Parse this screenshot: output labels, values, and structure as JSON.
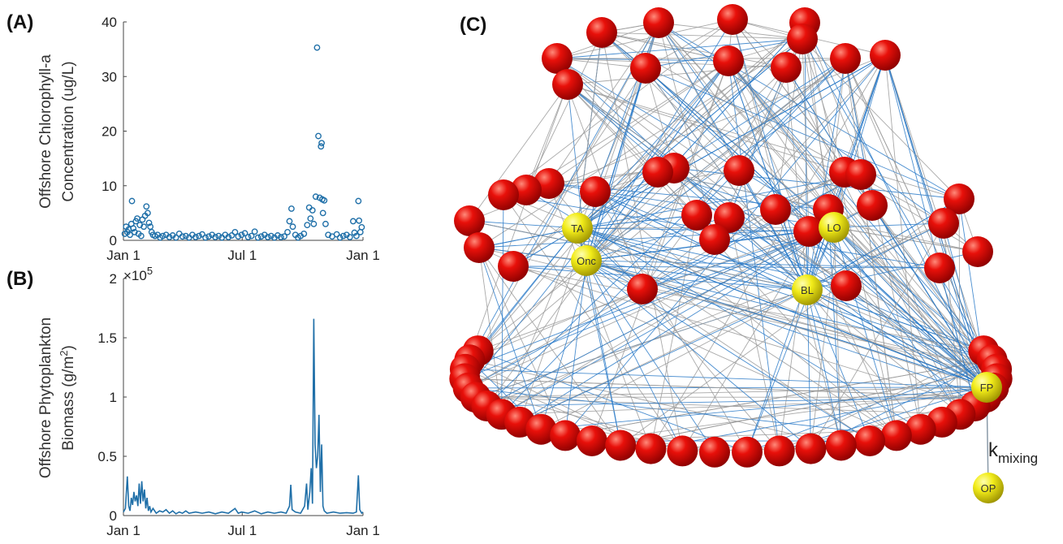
{
  "chart_data": [
    {
      "type": "scatter",
      "panel_label": "(A)",
      "ylabel": [
        "Offshore Chlorophyll-a",
        "Concentration (ug/L)"
      ],
      "color": "#1f6fa8",
      "xlim": [
        0,
        365
      ],
      "xticks": [
        {
          "value": 0,
          "label": "Jan 1"
        },
        {
          "value": 181,
          "label": "Jul 1"
        },
        {
          "value": 365,
          "label": "Jan 1"
        }
      ],
      "ylim": [
        0,
        40
      ],
      "yticks": [
        0,
        10,
        20,
        30,
        40
      ],
      "x": [
        2,
        4,
        6,
        8,
        10,
        12,
        13,
        15,
        17,
        19,
        21,
        23,
        25,
        27,
        29,
        31,
        33,
        35,
        37,
        39,
        41,
        43,
        45,
        48,
        52,
        56,
        60,
        65,
        70,
        75,
        80,
        85,
        90,
        95,
        100,
        105,
        110,
        115,
        120,
        125,
        130,
        135,
        140,
        145,
        150,
        155,
        160,
        165,
        170,
        175,
        180,
        185,
        190,
        195,
        200,
        205,
        210,
        215,
        220,
        225,
        230,
        235,
        240,
        245,
        250,
        253,
        256,
        258,
        262,
        266,
        270,
        275,
        280,
        283,
        285,
        288,
        290,
        293,
        295,
        297,
        299,
        301,
        302,
        303,
        304,
        306,
        308,
        312,
        318,
        325,
        330,
        335,
        340,
        345,
        350,
        352,
        355,
        358,
        359,
        361,
        363
      ],
      "values": [
        1.2,
        2.5,
        1.5,
        2,
        1,
        3,
        7.2,
        2.2,
        1.5,
        3.5,
        4,
        1.2,
        2.8,
        0.8,
        3.8,
        2.5,
        4.5,
        6.2,
        5,
        3.2,
        2.5,
        1.5,
        1,
        0.8,
        1,
        0.5,
        0.8,
        1,
        0.6,
        0.9,
        0.5,
        1.2,
        0.7,
        0.8,
        0.5,
        1,
        0.6,
        0.8,
        1.1,
        0.5,
        0.7,
        1,
        0.6,
        0.8,
        0.5,
        1,
        0.6,
        0.9,
        1.5,
        0.7,
        1,
        1.3,
        0.6,
        0.8,
        1.6,
        0.5,
        0.7,
        1,
        0.6,
        0.8,
        0.5,
        0.9,
        0.6,
        0.7,
        1.5,
        3.5,
        5.8,
        2.5,
        1,
        0.5,
        0.8,
        1.2,
        2.8,
        6,
        4,
        5.5,
        3,
        8,
        35.3,
        19.1,
        7.8,
        17.2,
        17.8,
        7.5,
        5,
        7.3,
        3,
        1,
        0.7,
        1.1,
        0.5,
        0.8,
        1,
        0.6,
        3.5,
        1.4,
        0.8,
        7.2,
        3.6,
        1.5,
        2.4
      ]
    },
    {
      "type": "line",
      "panel_label": "(B)",
      "ylabel": {
        "line1": "Offshore Phytoplankton",
        "line2": "Biomass (g/m",
        "sup": "2",
        "end": ")"
      },
      "y_multiplier": {
        "base": "×10",
        "power": "5"
      },
      "color": "#1f6fa8",
      "xlim": [
        0,
        365
      ],
      "xticks": [
        {
          "value": 0,
          "label": "Jan 1"
        },
        {
          "value": 181,
          "label": "Jul 1"
        },
        {
          "value": 365,
          "label": "Jan 1"
        }
      ],
      "ylim": [
        0,
        200000
      ],
      "yticks": [
        0,
        {
          "value": 50000,
          "label": "0.5"
        },
        {
          "value": 100000,
          "label": "1"
        },
        {
          "value": 150000,
          "label": "1.5"
        },
        {
          "value": 200000,
          "label": "2"
        }
      ],
      "x": [
        0,
        3,
        6,
        8,
        10,
        12,
        14,
        16,
        18,
        20,
        22,
        24,
        26,
        28,
        30,
        32,
        34,
        36,
        38,
        40,
        42,
        45,
        50,
        55,
        60,
        65,
        70,
        75,
        80,
        85,
        90,
        95,
        100,
        110,
        120,
        130,
        140,
        150,
        160,
        170,
        175,
        180,
        190,
        200,
        210,
        220,
        230,
        240,
        248,
        253,
        255,
        257,
        262,
        270,
        276,
        279,
        281,
        284,
        286,
        288,
        290,
        292,
        294,
        296,
        298,
        300,
        302,
        304,
        306,
        310,
        320,
        330,
        340,
        350,
        355,
        358,
        360,
        363,
        365
      ],
      "values": [
        3000,
        6000,
        33000,
        8000,
        4000,
        15000,
        9000,
        20000,
        12000,
        17000,
        8000,
        27000,
        10000,
        29000,
        12000,
        22000,
        6000,
        15000,
        4000,
        8000,
        3000,
        6000,
        2000,
        4000,
        3000,
        5000,
        2000,
        4000,
        1500,
        3000,
        2000,
        4000,
        2000,
        3000,
        2000,
        3000,
        1500,
        3000,
        2000,
        6000,
        2000,
        3000,
        2000,
        4000,
        1500,
        3000,
        2000,
        3000,
        2000,
        8000,
        26000,
        5000,
        3000,
        2000,
        8000,
        27000,
        5000,
        20000,
        40000,
        10000,
        166000,
        60000,
        40000,
        50000,
        85000,
        20000,
        60000,
        8000,
        4000,
        2000,
        3000,
        2000,
        2500,
        2000,
        3000,
        34000,
        5000,
        2000,
        3000
      ]
    }
  ],
  "network": {
    "panel_label": "(C)",
    "labeled_nodes": [
      "TA",
      "Onc",
      "LO",
      "BL",
      "FP",
      "OP"
    ],
    "annotation": {
      "text": "k",
      "subscript": "mixing"
    }
  }
}
